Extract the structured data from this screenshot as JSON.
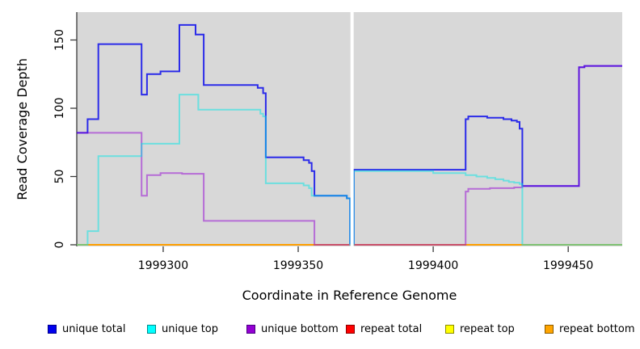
{
  "figure": {
    "background": "#ffffff",
    "panel_background": "#d8d8d8",
    "axis_color": "#3a3a3a"
  },
  "legend": {
    "items": [
      {
        "label": "unique total",
        "color": "#0000ee",
        "border": "#00008b"
      },
      {
        "label": "unique top",
        "color": "#00ffff",
        "border": "#008b8b"
      },
      {
        "label": "unique bottom",
        "color": "#9400d3",
        "border": "#4b0082"
      },
      {
        "label": "repeat total",
        "color": "#ff0000",
        "border": "#8b0000"
      },
      {
        "label": "repeat top",
        "color": "#ffff00",
        "border": "#8b8b00"
      },
      {
        "label": "repeat bottom",
        "color": "#ffa500",
        "border": "#8b5a00"
      }
    ]
  },
  "chart_data": {
    "type": "line",
    "step": "after",
    "title": "",
    "xlabel": "Coordinate in Reference Genome",
    "ylabel": "Read Coverage Depth",
    "xlim": [
      1999268,
      1999470
    ],
    "ylim": [
      0,
      172
    ],
    "x_tick_values": [
      1999300,
      1999350,
      1999400,
      1999450
    ],
    "x_tick_labels": [
      "1999300",
      "1999350",
      "1999400",
      "1999450"
    ],
    "y_tick_values": [
      0,
      50,
      100,
      150
    ],
    "y_tick_labels": [
      "0",
      "50",
      "100",
      "150"
    ],
    "grid": false,
    "legend_position": "bottom",
    "panel_background": "#d8d8d8",
    "no_data_gap": {
      "x_start": 1999369.35,
      "x_end": 1999370.55
    },
    "draw_order": [
      "unique total",
      "repeat total",
      "repeat top",
      "repeat bottom",
      "unique bottom",
      "unique top"
    ],
    "series": [
      {
        "name": "unique total",
        "color": "#0000ee",
        "opacity": 0.8,
        "points": [
          [
            1999268,
            82
          ],
          [
            1999272,
            92
          ],
          [
            1999276,
            147
          ],
          [
            1999292,
            110
          ],
          [
            1999294,
            125
          ],
          [
            1999299,
            127
          ],
          [
            1999306,
            161
          ],
          [
            1999312,
            154
          ],
          [
            1999315,
            117
          ],
          [
            1999335,
            115
          ],
          [
            1999337,
            111
          ],
          [
            1999338,
            64
          ],
          [
            1999352,
            62
          ],
          [
            1999354,
            60
          ],
          [
            1999355,
            54
          ],
          [
            1999356,
            36
          ],
          [
            1999368,
            34
          ],
          [
            1999369.2,
            0
          ],
          [
            1999370.6,
            55
          ],
          [
            1999412,
            92
          ],
          [
            1999413,
            94
          ],
          [
            1999420,
            93
          ],
          [
            1999426,
            92
          ],
          [
            1999429,
            91
          ],
          [
            1999431,
            90
          ],
          [
            1999432,
            85
          ],
          [
            1999433,
            43
          ],
          [
            1999454,
            130
          ],
          [
            1999456,
            131
          ],
          [
            1999470,
            131
          ]
        ]
      },
      {
        "name": "unique top",
        "color": "#00e6e6",
        "opacity": 0.5,
        "points": [
          [
            1999268,
            0
          ],
          [
            1999272,
            10
          ],
          [
            1999276,
            65
          ],
          [
            1999292,
            74
          ],
          [
            1999306,
            110
          ],
          [
            1999313,
            99
          ],
          [
            1999336,
            96
          ],
          [
            1999337,
            94
          ],
          [
            1999338,
            45
          ],
          [
            1999352,
            43.5
          ],
          [
            1999354,
            41.5
          ],
          [
            1999355,
            36
          ],
          [
            1999368,
            34
          ],
          [
            1999369.2,
            0
          ],
          [
            1999370.6,
            54
          ],
          [
            1999400,
            52.5
          ],
          [
            1999412,
            51
          ],
          [
            1999416,
            50
          ],
          [
            1999420,
            49
          ],
          [
            1999423,
            48
          ],
          [
            1999426,
            47
          ],
          [
            1999428,
            46
          ],
          [
            1999430,
            45.5
          ],
          [
            1999432,
            44.5
          ],
          [
            1999433,
            0
          ],
          [
            1999470,
            0
          ]
        ]
      },
      {
        "name": "unique bottom",
        "color": "#9400d3",
        "opacity": 0.5,
        "points": [
          [
            1999268,
            82
          ],
          [
            1999292,
            36
          ],
          [
            1999294,
            51
          ],
          [
            1999299,
            52.5
          ],
          [
            1999307,
            52
          ],
          [
            1999315,
            17.5
          ],
          [
            1999356,
            0
          ],
          [
            1999412,
            39
          ],
          [
            1999413,
            41
          ],
          [
            1999421,
            41.5
          ],
          [
            1999430,
            42
          ],
          [
            1999433,
            43
          ],
          [
            1999454,
            130
          ],
          [
            1999456,
            131
          ],
          [
            1999470,
            131
          ]
        ]
      },
      {
        "name": "repeat total",
        "color": "#ee0000",
        "opacity": 0.7,
        "points": [
          [
            1999268,
            0
          ],
          [
            1999470,
            0
          ]
        ]
      },
      {
        "name": "repeat top",
        "color": "#f2f200",
        "opacity": 0.8,
        "points": [
          [
            1999268,
            0
          ],
          [
            1999470,
            0
          ]
        ]
      },
      {
        "name": "repeat bottom",
        "color": "#ff9900",
        "opacity": 0.9,
        "points": [
          [
            1999268,
            0
          ],
          [
            1999470,
            0
          ]
        ]
      }
    ]
  }
}
